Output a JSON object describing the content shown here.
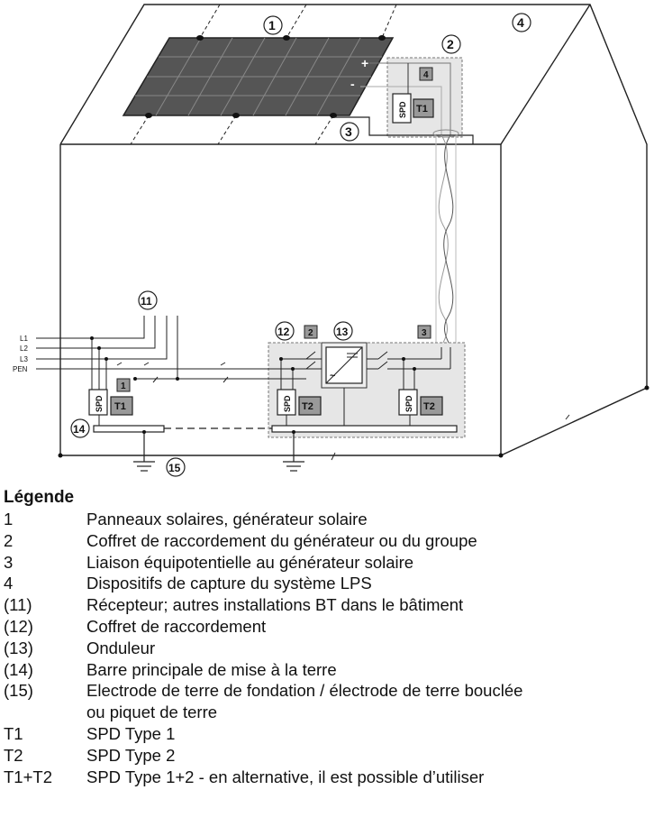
{
  "diagram": {
    "callouts": {
      "c1": "1",
      "c2": "2",
      "c3": "3",
      "c4": "4",
      "c11": "11",
      "c12": "12",
      "c13": "13",
      "c14": "14",
      "c15": "15"
    },
    "square_tags": {
      "s1": "1",
      "s2": "2",
      "s3": "3",
      "s4": "4"
    },
    "lines": {
      "l1": "L1",
      "l2": "L2",
      "l3": "L3",
      "pen": "PEN"
    },
    "polarity": {
      "plus": "+",
      "minus": "-"
    },
    "spd_label": "SPD",
    "type_labels": {
      "t1": "T1",
      "t2": "T2"
    }
  },
  "legend": {
    "title": "Légende",
    "items": [
      {
        "key": "1",
        "text": "Panneaux solaires, générateur solaire"
      },
      {
        "key": "2",
        "text": "Coffret de raccordement du générateur ou du groupe"
      },
      {
        "key": "3",
        "text": "Liaison équipotentielle au générateur solaire"
      },
      {
        "key": "4",
        "text": "Dispositifs de capture du système LPS"
      },
      {
        "key": "(11)",
        "text": "Récepteur; autres installations BT dans le bâtiment"
      },
      {
        "key": "(12)",
        "text": "Coffret de raccordement"
      },
      {
        "key": "(13)",
        "text": "Onduleur"
      },
      {
        "key": "(14)",
        "text": "Barre principale de mise à la terre"
      },
      {
        "key": "(15)",
        "text": "Electrode de terre de fondation / électrode de terre bouclée"
      },
      {
        "key": "T1",
        "text": "SPD Type 1"
      },
      {
        "key": "T2",
        "text": "SPD Type 2"
      },
      {
        "key": "T1+T2",
        "text": "SPD Type 1+2 - en alternative, il est possible d’utiliser"
      }
    ],
    "continuation": "ou piquet de terre"
  }
}
